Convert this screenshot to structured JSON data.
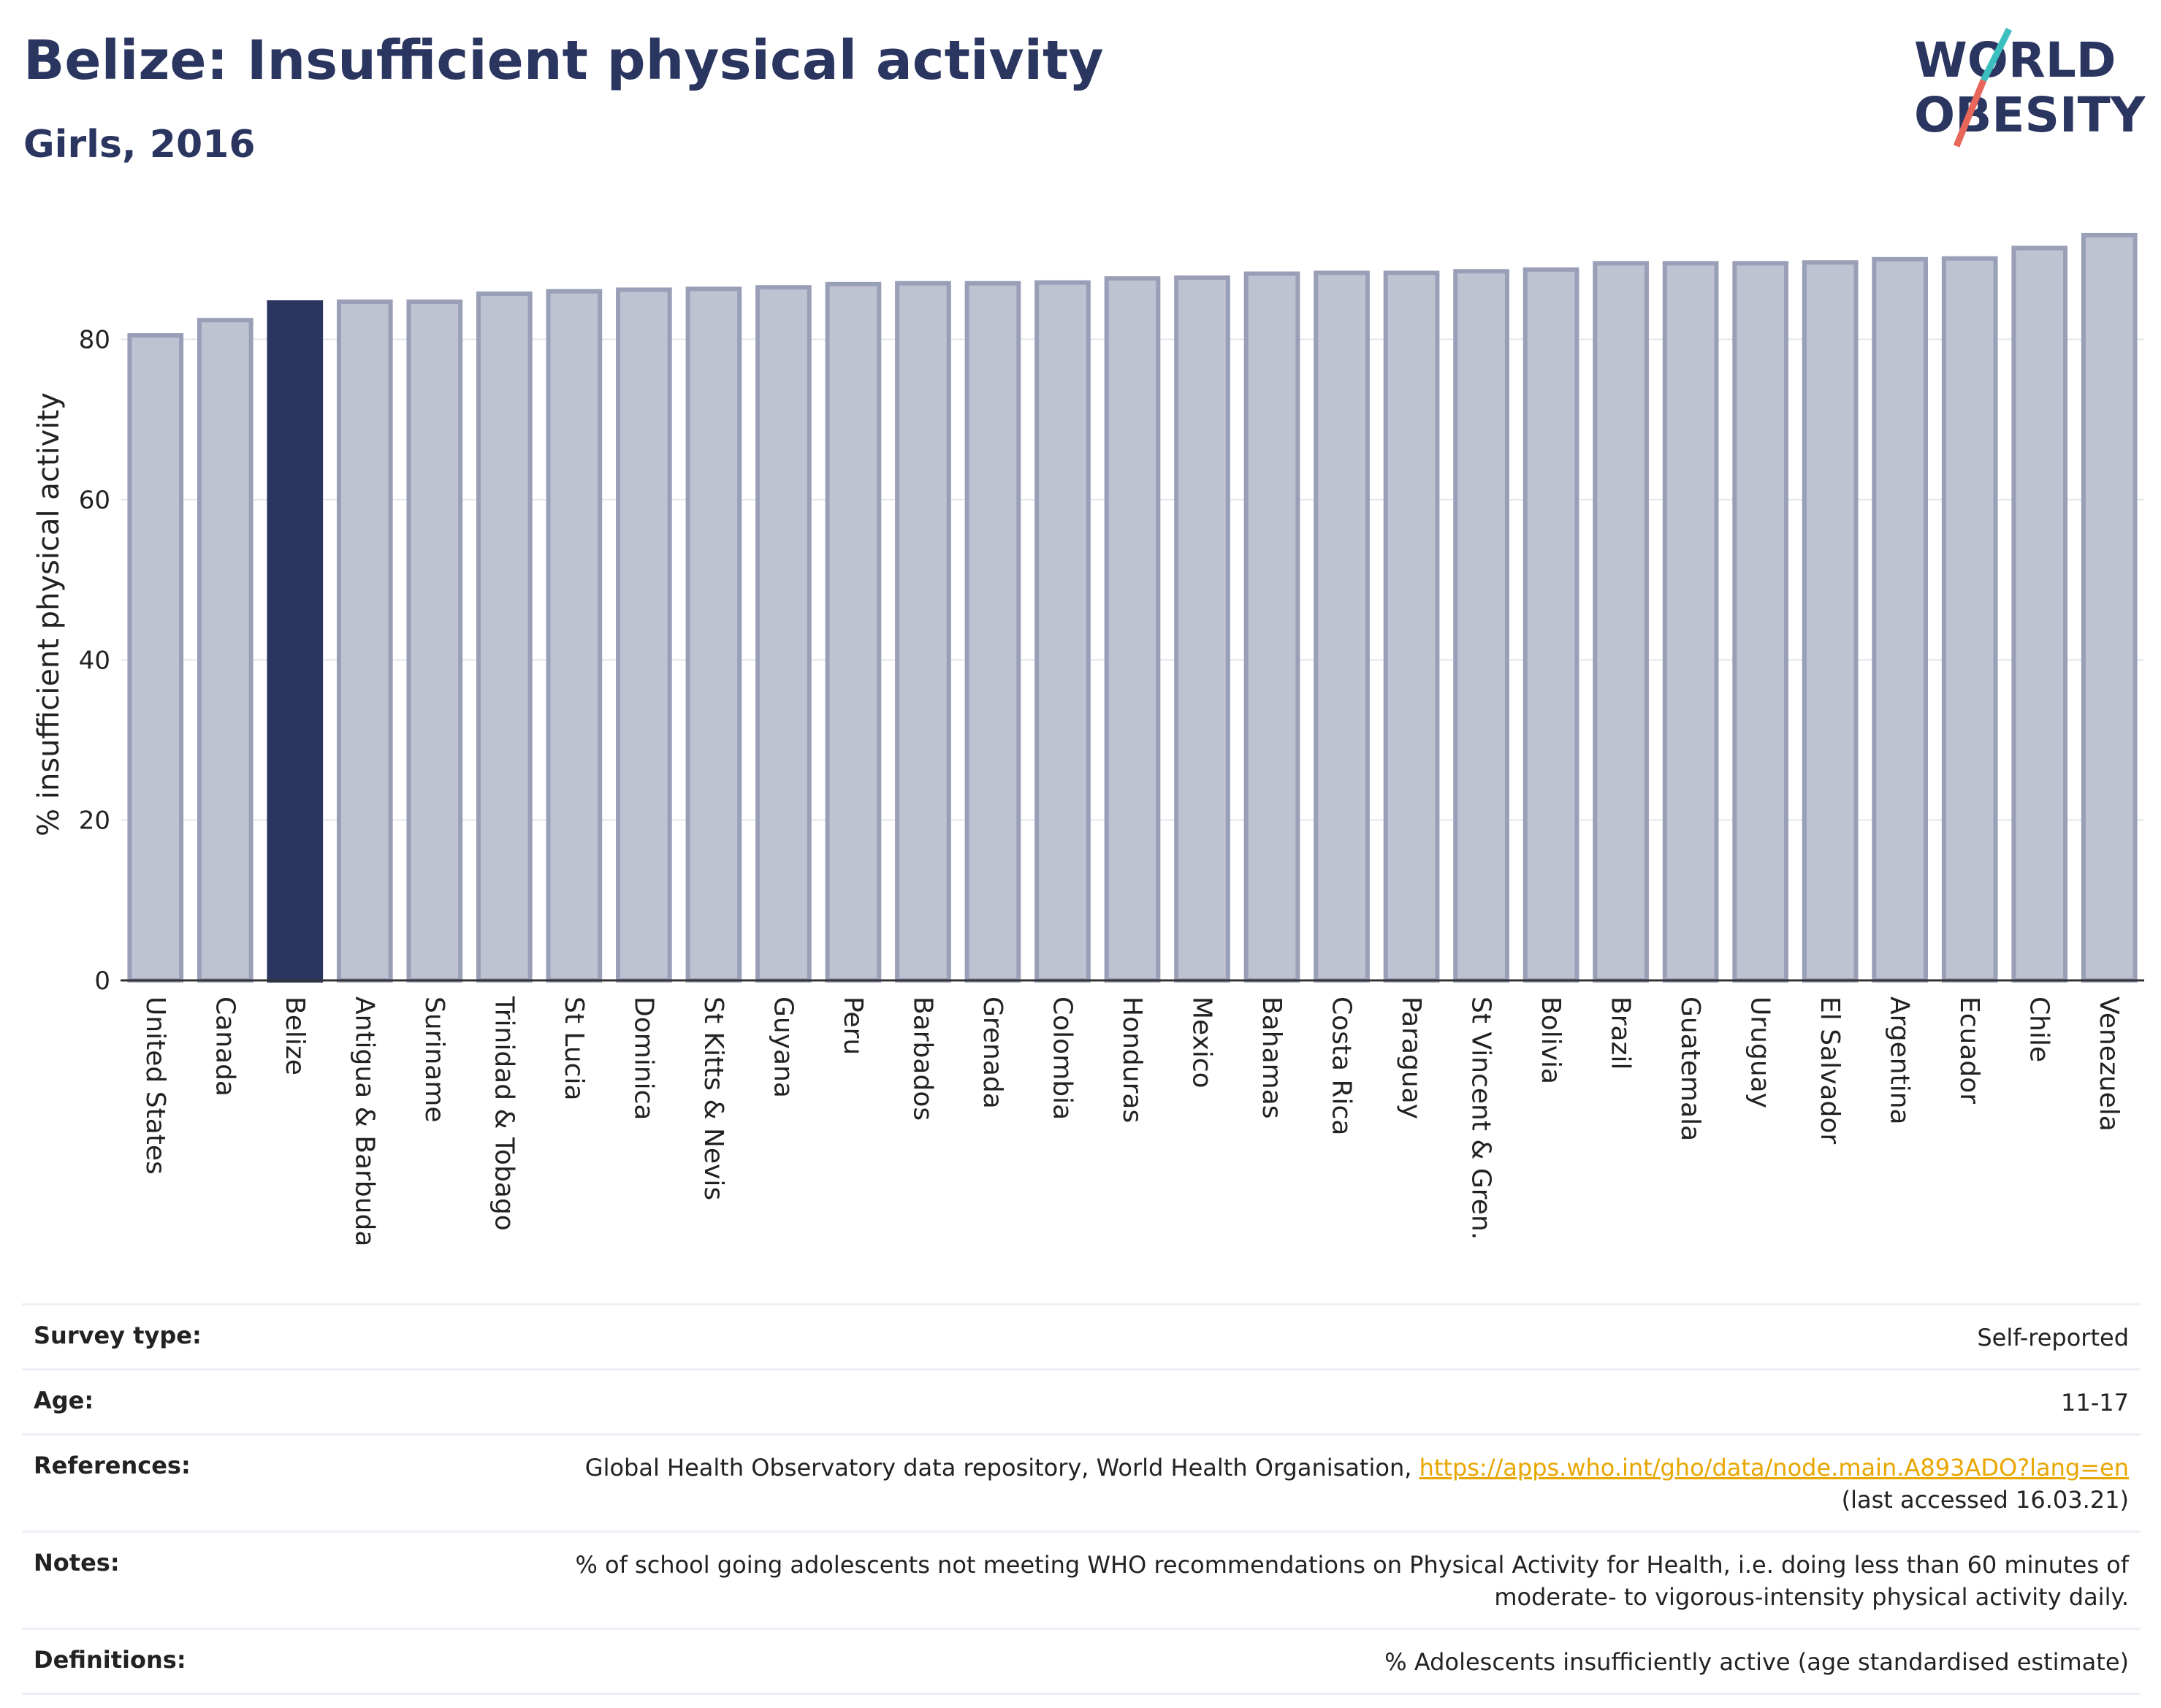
{
  "header": {
    "title": "Belize: Insufficient physical activity",
    "subtitle": "Girls, 2016"
  },
  "logo": {
    "line1": "WORLD",
    "line2": "OBESITY"
  },
  "colors": {
    "highlight": "#2a3560",
    "bar": "#bfc2d1",
    "bar_border": "#9a9fb8",
    "text": "#2a3560",
    "link": "#e8a600"
  },
  "chart_data": {
    "type": "bar",
    "ylabel": "% insufficient physical activity",
    "ylim": [
      0,
      95
    ],
    "yticks": [
      0,
      20,
      40,
      60,
      80
    ],
    "highlight": "Belize",
    "grid": true,
    "categories": [
      "United States",
      "Canada",
      "Belize",
      "Antigua & Barbuda",
      "Suriname",
      "Trinidad & Tobago",
      "St Lucia",
      "Dominica",
      "St Kitts & Nevis",
      "Guyana",
      "Peru",
      "Barbados",
      "Grenada",
      "Colombia",
      "Honduras",
      "Mexico",
      "Bahamas",
      "Costa Rica",
      "Paraguay",
      "St Vincent & Gren.",
      "Bolivia",
      "Brazil",
      "Guatemala",
      "Uruguay",
      "El Salvador",
      "Argentina",
      "Ecuador",
      "Chile",
      "Venezuela"
    ],
    "values": [
      80.5,
      82.4,
      84.6,
      84.7,
      84.7,
      85.7,
      86.0,
      86.2,
      86.3,
      86.5,
      86.9,
      87.0,
      87.0,
      87.1,
      87.6,
      87.7,
      88.2,
      88.3,
      88.3,
      88.5,
      88.7,
      89.5,
      89.5,
      89.5,
      89.6,
      90.0,
      90.1,
      91.4,
      93.0
    ]
  },
  "info": {
    "survey_label": "Survey type:",
    "survey_value": "Self-reported",
    "age_label": "Age:",
    "age_value": "11-17",
    "ref_label": "References:",
    "ref_text": "Global Health Observatory data repository, World Health Organisation, ",
    "ref_link": "https://apps.who.int/gho/data/node.main.A893ADO?lang=en",
    "ref_accessed": "(last accessed 16.03.21)",
    "notes_label": "Notes:",
    "notes_value": "% of school going adolescents not meeting WHO recommendations on Physical Activity for Health, i.e. doing less than 60 minutes of moderate- to vigorous-intensity physical activity daily.",
    "def_label": "Definitions:",
    "def_value": "% Adolescents insufficiently active (age standardised estimate)"
  }
}
